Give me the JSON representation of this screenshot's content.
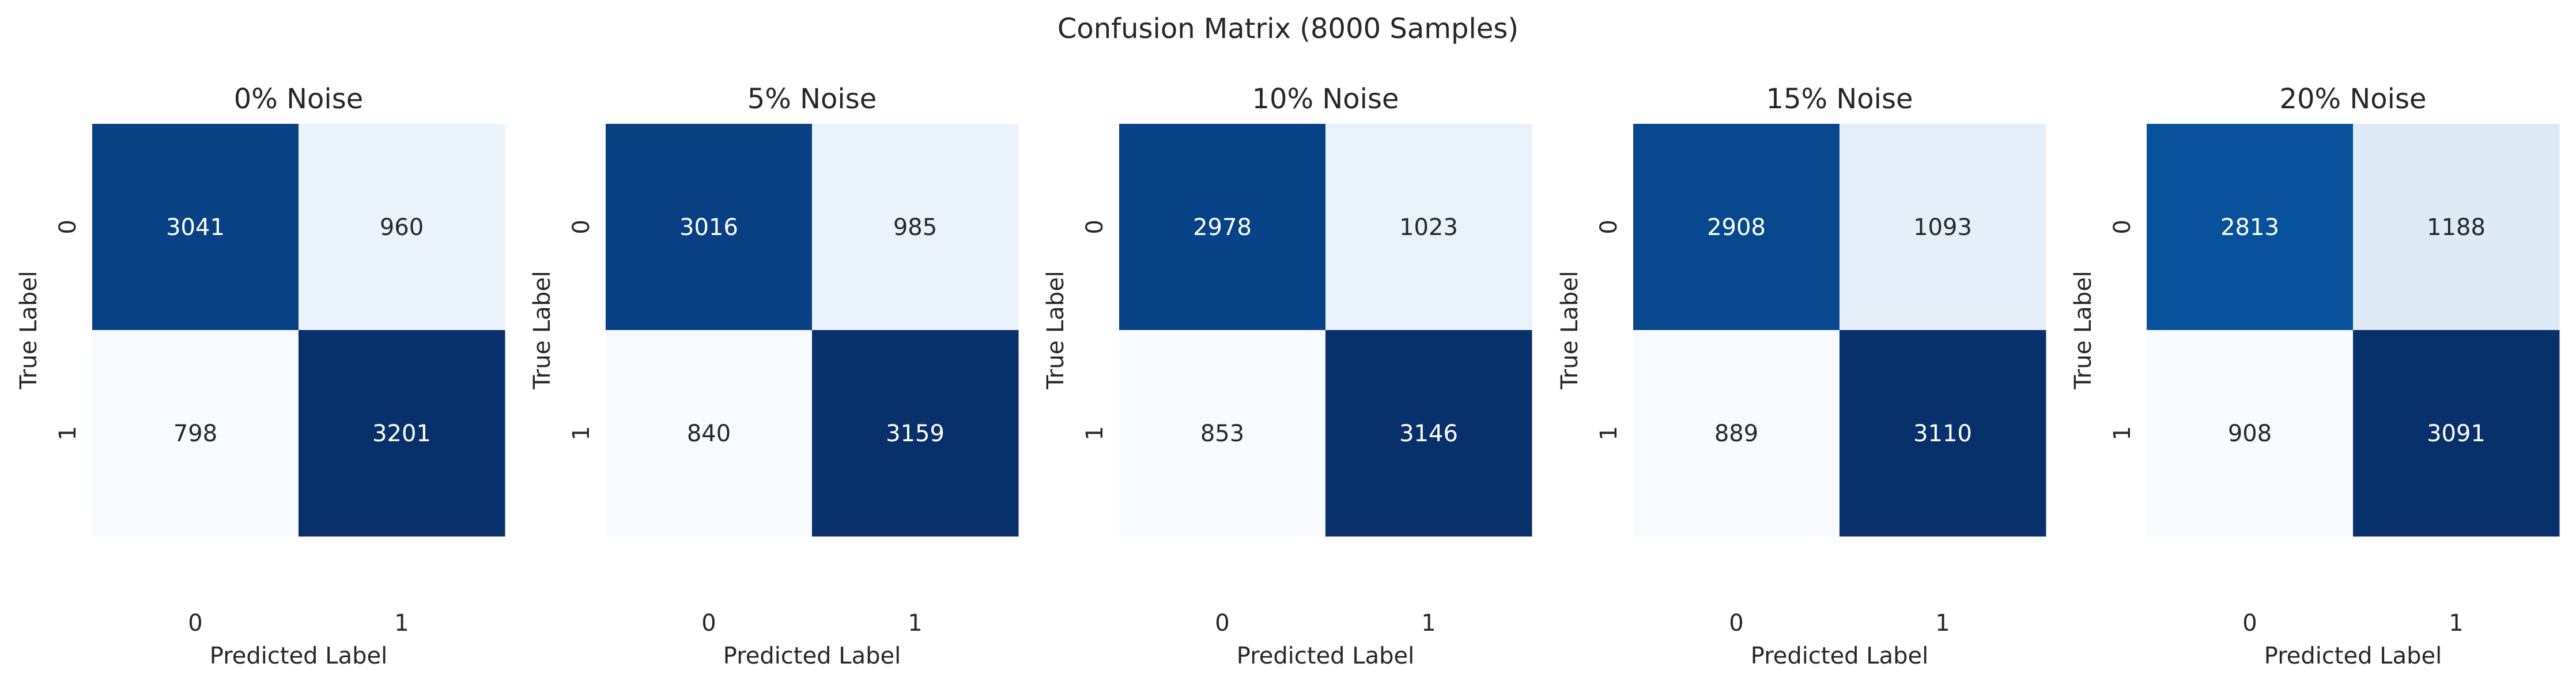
{
  "figure": {
    "suptitle": "Confusion Matrix (8000 Samples)"
  },
  "chart_data": [
    {
      "type": "heatmap",
      "title": "0% Noise",
      "xlabel": "Predicted Label",
      "ylabel": "True Label",
      "x_ticks": [
        "0",
        "1"
      ],
      "y_ticks": [
        "0",
        "1"
      ],
      "colormap": "Blues",
      "matrix": [
        [
          3041,
          960
        ],
        [
          798,
          3201
        ]
      ]
    },
    {
      "type": "heatmap",
      "title": "5% Noise",
      "xlabel": "Predicted Label",
      "ylabel": "True Label",
      "x_ticks": [
        "0",
        "1"
      ],
      "y_ticks": [
        "0",
        "1"
      ],
      "colormap": "Blues",
      "matrix": [
        [
          3016,
          985
        ],
        [
          840,
          3159
        ]
      ]
    },
    {
      "type": "heatmap",
      "title": "10% Noise",
      "xlabel": "Predicted Label",
      "ylabel": "True Label",
      "x_ticks": [
        "0",
        "1"
      ],
      "y_ticks": [
        "0",
        "1"
      ],
      "colormap": "Blues",
      "matrix": [
        [
          2978,
          1023
        ],
        [
          853,
          3146
        ]
      ]
    },
    {
      "type": "heatmap",
      "title": "15% Noise",
      "xlabel": "Predicted Label",
      "ylabel": "True Label",
      "x_ticks": [
        "0",
        "1"
      ],
      "y_ticks": [
        "0",
        "1"
      ],
      "colormap": "Blues",
      "matrix": [
        [
          2908,
          1093
        ],
        [
          889,
          3110
        ]
      ]
    },
    {
      "type": "heatmap",
      "title": "20% Noise",
      "xlabel": "Predicted Label",
      "ylabel": "True Label",
      "x_ticks": [
        "0",
        "1"
      ],
      "y_ticks": [
        "0",
        "1"
      ],
      "colormap": "Blues",
      "matrix": [
        [
          2813,
          1188
        ],
        [
          908,
          3091
        ]
      ]
    }
  ]
}
